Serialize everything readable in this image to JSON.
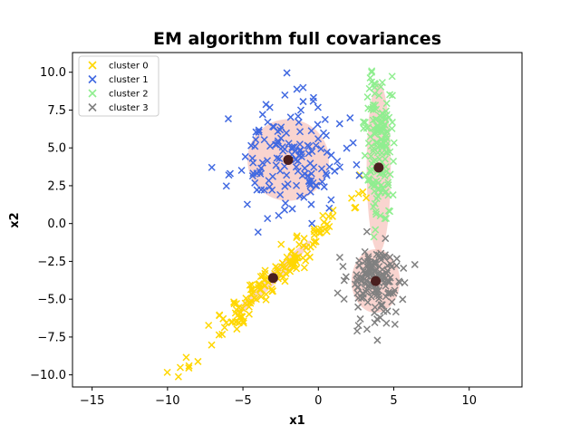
{
  "chart_data": {
    "type": "scatter",
    "title": "EM algorithm full covariances",
    "xlabel": "x1",
    "ylabel": "x2",
    "xlim": [
      -16.3,
      13.5
    ],
    "ylim": [
      -10.8,
      11.3
    ],
    "xticks": [
      -15,
      -10,
      -5,
      0,
      5,
      10
    ],
    "yticks": [
      -10.0,
      -7.5,
      -5.0,
      -2.5,
      0.0,
      2.5,
      5.0,
      7.5,
      10.0
    ],
    "xtick_labels": [
      "−15",
      "−10",
      "−5",
      "0",
      "5",
      "10"
    ],
    "ytick_labels": [
      "−10.0",
      "−7.5",
      "−5.0",
      "−2.5",
      "0.0",
      "2.5",
      "5.0",
      "7.5",
      "10.0"
    ],
    "legend_position": "top-left",
    "marker": "x",
    "ellipse_color": "#f4a9a0",
    "center_color": "#4a1f1f",
    "series": [
      {
        "name": "cluster 0",
        "color": "#ffd700",
        "mean": [
          -3.0,
          -3.6
        ],
        "cov": [
          [
            6.2,
            6.0
          ],
          [
            6.0,
            6.2
          ]
        ],
        "n": 150,
        "seed": 11
      },
      {
        "name": "cluster 1",
        "color": "#4169e1",
        "mean": [
          -2.0,
          4.2
        ],
        "cov": [
          [
            3.5,
            0.0
          ],
          [
            0.0,
            3.5
          ]
        ],
        "n": 150,
        "seed": 23
      },
      {
        "name": "cluster 2",
        "color": "#90ee90",
        "mean": [
          4.0,
          5.2
        ],
        "cov": [
          [
            0.18,
            0.0
          ],
          [
            0.0,
            6.5
          ]
        ],
        "n": 150,
        "seed": 37
      },
      {
        "name": "cluster 3",
        "color": "#808080",
        "mean": [
          3.8,
          -3.9
        ],
        "cov": [
          [
            0.9,
            0.0
          ],
          [
            0.0,
            1.8
          ]
        ],
        "n": 150,
        "seed": 53
      }
    ],
    "fitted_components": [
      {
        "center": [
          -3.0,
          -3.6
        ],
        "axes": [
          3.5,
          0.35
        ],
        "angle_deg": 44.9
      },
      {
        "center": [
          -2.0,
          4.2
        ],
        "axes": [
          2.7,
          2.7
        ],
        "angle_deg": 0
      },
      {
        "center": [
          4.0,
          3.7
        ],
        "axes": [
          0.8,
          5.6
        ],
        "angle_deg": 0
      },
      {
        "center": [
          3.8,
          -3.8
        ],
        "axes": [
          1.6,
          2.1
        ],
        "angle_deg": 0
      }
    ]
  }
}
